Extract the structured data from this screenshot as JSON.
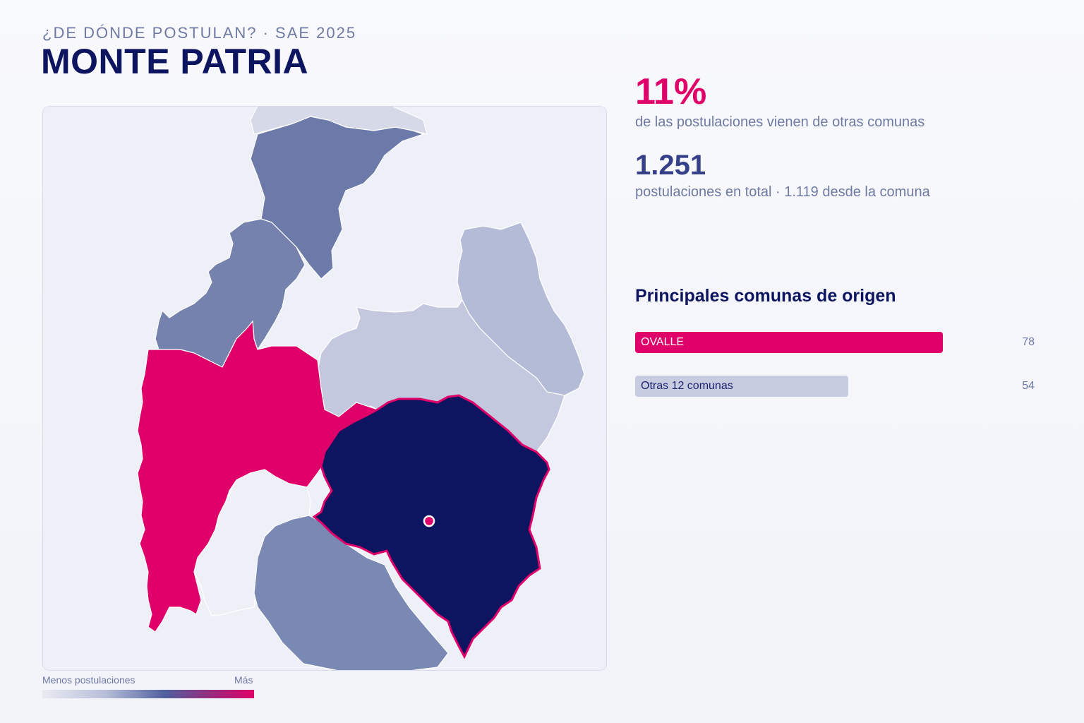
{
  "header": {
    "kicker": "¿DE DÓNDE POSTULAN? · SAE 2025",
    "title": "MONTE PATRIA"
  },
  "stats": {
    "percent": "11%",
    "percent_text": "de las postulaciones vienen de otras comunas",
    "total": "1.251",
    "total_text": "postulaciones en total · 1.119 desde la comuna"
  },
  "ranking": {
    "title": "Principales comunas de origen",
    "max_value": 78,
    "items": [
      {
        "label": "OVALLE",
        "value": 78,
        "display": "78",
        "color": "#df0069",
        "text_color": "#ffffff"
      },
      {
        "label": "Otras 12 comunas",
        "value": 54,
        "display": "54",
        "color": "#c7cce0",
        "text_color": "#1b2270"
      }
    ]
  },
  "legend": {
    "min_label": "Menos postulaciones",
    "max_label": "Más"
  },
  "colors": {
    "selected": "#0e1560",
    "top_origin": "#df0069",
    "medium": "#6b7aa8",
    "light": "#c3c8de",
    "background": "#eef0f7"
  }
}
